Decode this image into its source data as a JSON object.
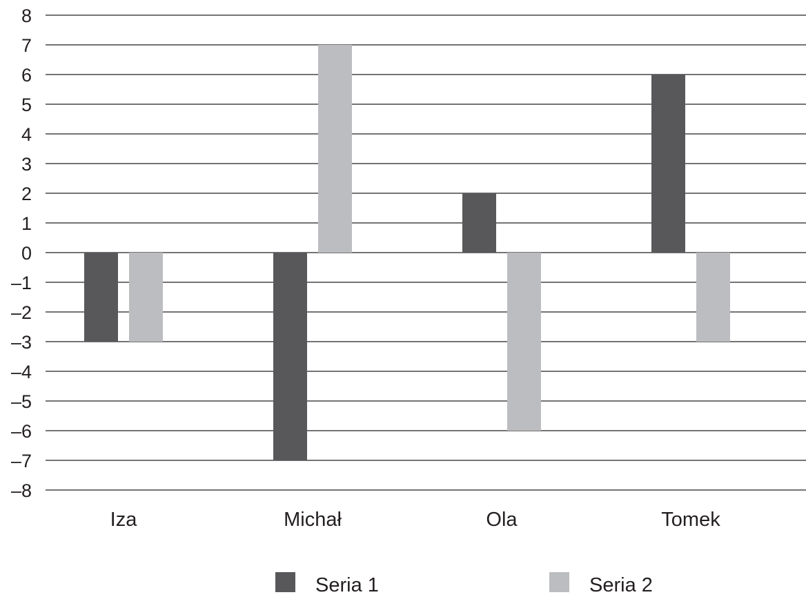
{
  "chart_data": {
    "type": "bar",
    "title": "",
    "xlabel": "",
    "ylabel": "",
    "categories": [
      "Iza",
      "Michał",
      "Ola",
      "Tomek"
    ],
    "series": [
      {
        "name": "Seria 1",
        "values": [
          -3,
          -7,
          2,
          6
        ],
        "color": "#58585a"
      },
      {
        "name": "Seria 2",
        "values": [
          -3,
          7,
          -6,
          -3
        ],
        "color": "#bcbdc0"
      }
    ],
    "ylim": [
      -8,
      8
    ],
    "yticks": [
      "8",
      "7",
      "6",
      "5",
      "4",
      "3",
      "2",
      "1",
      "0",
      "–1",
      "–2",
      "–3",
      "–4",
      "–5",
      "–6",
      "–7",
      "–8"
    ],
    "grid": true,
    "legend_position": "bottom"
  }
}
